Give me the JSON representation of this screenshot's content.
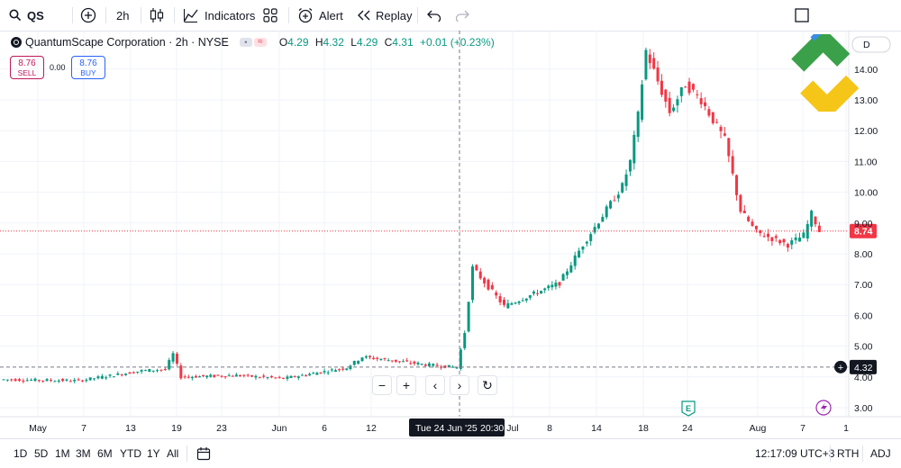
{
  "toolbar": {
    "symbol": "QS",
    "interval": "2h",
    "indicators_label": "Indicators",
    "alert_label": "Alert",
    "replay_label": "Replay"
  },
  "legend": {
    "title": "QuantumScape Corporation · 2h · NYSE",
    "open_label": "O",
    "open": "4.29",
    "high_label": "H",
    "high": "4.32",
    "low_label": "L",
    "low": "4.29",
    "close_label": "C",
    "close": "4.31",
    "change": "+0.01 (+0.23%)"
  },
  "trade": {
    "sell_price": "8.76",
    "sell_label": "SELL",
    "spread": "0.00",
    "buy_price": "8.76",
    "buy_label": "BUY"
  },
  "price_axis": {
    "ticks": [
      "3.00",
      "4.00",
      "5.00",
      "6.00",
      "7.00",
      "8.00",
      "9.00",
      "10.00",
      "11.00",
      "12.00",
      "13.00",
      "14.00"
    ],
    "top_partial_label": "D",
    "last_price_label": "8.74",
    "crosshair_price_label": "4.32"
  },
  "time_axis": {
    "ticks": [
      "May",
      "7",
      "13",
      "19",
      "23",
      "Jun",
      "6",
      "12",
      "Jul",
      "8",
      "14",
      "18",
      "24",
      "Aug",
      "7",
      "1"
    ],
    "crosshair_label": "Tue 24 Jun '25",
    "crosshair_time": "20:30"
  },
  "markers": {
    "earnings_label": "E"
  },
  "bottom": {
    "ranges": [
      "1D",
      "5D",
      "1M",
      "3M",
      "6M",
      "YTD",
      "1Y",
      "All"
    ],
    "clock": "12:17:09 UTC+3",
    "session": "RTH",
    "adj": "ADJ"
  },
  "colors": {
    "up": "#089981",
    "down": "#f23645",
    "sell": "#c2185b",
    "buy": "#2962ff",
    "last_price": "#f23645"
  },
  "chart_data": {
    "type": "candlestick",
    "symbol": "QS",
    "timeframe": "2h",
    "ylim": [
      2.6,
      15.2
    ],
    "last_price": 8.74,
    "crosshair": {
      "time": "Tue 24 Jun '25 20:30",
      "price": 4.32
    },
    "anchors": [
      {
        "date": "2025-04-27",
        "close": 3.92
      },
      {
        "date": "2025-05-01",
        "close": 3.9
      },
      {
        "date": "2025-05-07",
        "close": 3.88
      },
      {
        "date": "2025-05-12",
        "close": 4.08
      },
      {
        "date": "2025-05-15",
        "close": 4.2
      },
      {
        "date": "2025-05-18",
        "close": 4.25
      },
      {
        "date": "2025-05-19",
        "close": 4.75
      },
      {
        "date": "2025-05-20",
        "close": 4.0
      },
      {
        "date": "2025-05-27",
        "close": 4.05
      },
      {
        "date": "2025-06-02",
        "close": 3.95
      },
      {
        "date": "2025-06-10",
        "close": 4.3
      },
      {
        "date": "2025-06-12",
        "close": 4.65
      },
      {
        "date": "2025-06-20",
        "close": 4.4
      },
      {
        "date": "2025-06-24",
        "close": 4.31
      },
      {
        "date": "2025-06-25",
        "close": 5.45
      },
      {
        "date": "2025-06-26",
        "close": 7.55
      },
      {
        "date": "2025-06-30",
        "close": 6.3
      },
      {
        "date": "2025-07-07",
        "close": 7.05
      },
      {
        "date": "2025-07-10",
        "close": 8.3
      },
      {
        "date": "2025-07-15",
        "close": 10.2
      },
      {
        "date": "2025-07-16",
        "close": 11.0
      },
      {
        "date": "2025-07-17",
        "close": 12.5
      },
      {
        "date": "2025-07-18",
        "close": 14.6
      },
      {
        "date": "2025-07-21",
        "close": 12.6
      },
      {
        "date": "2025-07-23",
        "close": 13.5
      },
      {
        "date": "2025-07-25",
        "close": 13.0
      },
      {
        "date": "2025-07-28",
        "close": 11.7
      },
      {
        "date": "2025-07-30",
        "close": 9.4
      },
      {
        "date": "2025-08-01",
        "close": 8.7
      },
      {
        "date": "2025-08-05",
        "close": 8.3
      },
      {
        "date": "2025-08-07",
        "close": 8.6
      },
      {
        "date": "2025-08-08",
        "close": 9.3
      },
      {
        "date": "2025-08-09",
        "close": 8.74
      }
    ]
  }
}
